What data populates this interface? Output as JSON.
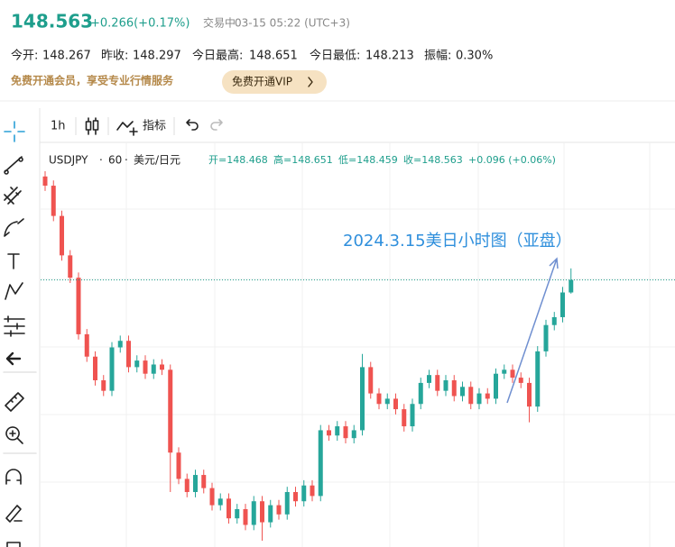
{
  "header": {
    "price": "148.563",
    "change": "+0.266(+0.17%)",
    "status": "交易中",
    "time": "03-15 05:22 (UTC+3)"
  },
  "stats": [
    {
      "label": "今开:",
      "value": "148.267"
    },
    {
      "label": "昨收:",
      "value": "148.297"
    },
    {
      "label": "今日最高:",
      "value": "148.651"
    },
    {
      "label": "今日最低:",
      "value": "148.213"
    },
    {
      "label": "振幅:",
      "value": "0.30%"
    }
  ],
  "promo": {
    "text": "免费开通会员，享受专业行情服务",
    "button": "免费开通VIP"
  },
  "toolbar": {
    "interval": "1h",
    "indicators": "指标"
  },
  "chart_data": {
    "type": "candlestick",
    "symbol": "USDJPY",
    "interval": "60",
    "pair": "美元/日元",
    "legend": [
      "开=148.468",
      "高=148.651",
      "低=148.459",
      "收=148.563",
      "+0.096 (+0.06%)"
    ],
    "annotation": "2024.3.15美日小时图（亚盘）",
    "up_color": "#26a69a",
    "down_color": "#ef5350",
    "open": [
      149.35,
      149.28,
      149.05,
      148.75,
      148.58,
      148.15,
      147.98,
      147.8,
      147.72,
      148.05,
      148.1,
      147.9,
      147.95,
      147.85,
      147.92,
      147.88,
      147.25,
      147.05,
      146.95,
      147.08,
      146.98,
      146.85,
      146.9,
      146.75,
      146.82,
      146.7,
      146.88,
      146.72,
      146.85,
      146.78,
      146.95,
      146.88,
      147.0,
      146.92,
      147.42,
      147.38,
      147.45,
      147.36,
      147.42,
      147.9,
      147.7,
      147.62,
      147.66,
      147.58,
      147.45,
      147.62,
      147.78,
      147.84,
      147.72,
      147.8,
      147.68,
      147.75,
      147.62,
      147.7,
      147.66,
      147.85,
      147.88,
      147.82,
      147.78,
      147.6,
      148.02,
      148.22,
      148.28,
      148.468
    ],
    "high": [
      149.39,
      149.32,
      149.09,
      148.79,
      148.62,
      148.19,
      148.02,
      147.84,
      148.09,
      148.14,
      148.14,
      147.99,
      147.99,
      147.96,
      147.96,
      147.92,
      147.29,
      147.09,
      147.12,
      147.12,
      147.02,
      146.94,
      146.94,
      146.86,
      146.86,
      146.92,
      146.92,
      146.89,
      146.89,
      146.99,
      146.99,
      147.04,
      147.04,
      147.46,
      147.46,
      147.49,
      147.49,
      147.46,
      148.0,
      147.94,
      147.74,
      147.7,
      147.7,
      147.62,
      147.66,
      147.82,
      147.88,
      147.88,
      147.84,
      147.84,
      147.79,
      147.79,
      147.74,
      147.74,
      147.89,
      147.92,
      147.92,
      147.86,
      147.82,
      148.06,
      148.26,
      148.32,
      148.51,
      148.651
    ],
    "low": [
      149.24,
      149.01,
      148.71,
      148.54,
      148.11,
      147.94,
      147.76,
      147.68,
      147.68,
      148.01,
      147.86,
      147.86,
      147.81,
      147.81,
      147.84,
      146.95,
      147.01,
      146.91,
      146.91,
      146.94,
      146.81,
      146.81,
      146.71,
      146.71,
      146.66,
      146.66,
      146.58,
      146.68,
      146.74,
      146.74,
      146.84,
      146.84,
      146.88,
      146.88,
      147.34,
      147.34,
      147.32,
      147.32,
      147.38,
      147.66,
      147.58,
      147.58,
      147.54,
      147.41,
      147.41,
      147.58,
      147.74,
      147.68,
      147.68,
      147.64,
      147.64,
      147.58,
      147.58,
      147.62,
      147.62,
      147.81,
      147.78,
      147.74,
      147.48,
      147.56,
      147.98,
      148.18,
      148.24,
      148.459
    ],
    "close": [
      149.28,
      149.05,
      148.75,
      148.58,
      148.15,
      147.98,
      147.8,
      147.72,
      148.05,
      148.1,
      147.9,
      147.95,
      147.85,
      147.92,
      147.88,
      147.25,
      147.05,
      146.95,
      147.08,
      146.98,
      146.85,
      146.9,
      146.75,
      146.82,
      146.7,
      146.88,
      146.72,
      146.85,
      146.78,
      146.95,
      146.88,
      147.0,
      146.92,
      147.42,
      147.38,
      147.45,
      147.36,
      147.42,
      147.9,
      147.7,
      147.62,
      147.66,
      147.58,
      147.45,
      147.62,
      147.78,
      147.84,
      147.72,
      147.8,
      147.68,
      147.75,
      147.62,
      147.7,
      147.66,
      147.85,
      147.88,
      147.82,
      147.78,
      147.6,
      148.02,
      148.22,
      148.28,
      148.468,
      148.563
    ]
  }
}
